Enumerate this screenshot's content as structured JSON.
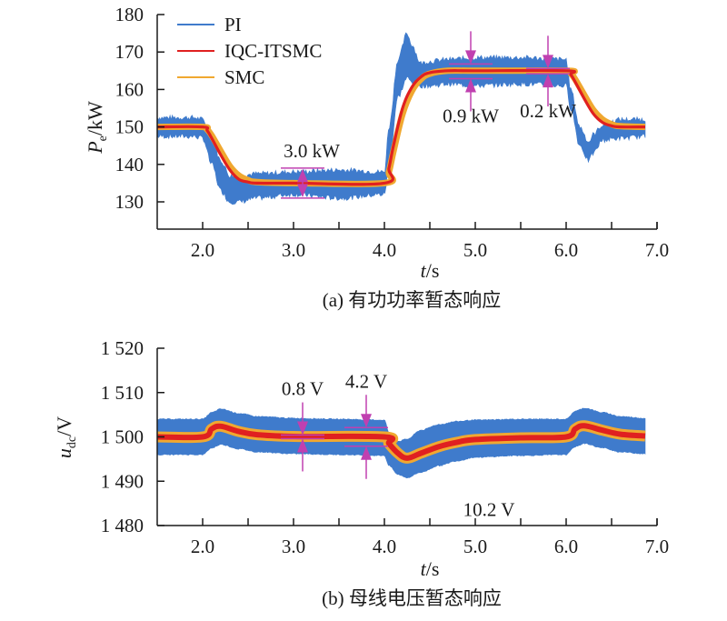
{
  "chart_data": [
    {
      "type": "line",
      "panel": "a",
      "caption": "(a) 有功功率暂态响应",
      "xlabel_italic": "t",
      "xlabel_unit": "/s",
      "ylabel_symbol": "P",
      "ylabel_subscript": "e",
      "ylabel_unit": "/kW",
      "xlim": [
        1.5,
        7.0
      ],
      "ylim": [
        125,
        180
      ],
      "xticks": [
        2.0,
        3.0,
        4.0,
        5.0,
        6.0,
        7.0
      ],
      "xtick_labels": [
        "2.0",
        "3.0",
        "4.0",
        "5.0",
        "6.0",
        "7.0"
      ],
      "xminor_ticks": [
        2.5,
        3.5,
        4.5,
        5.5,
        6.5
      ],
      "yticks": [
        130,
        140,
        150,
        160,
        170,
        180
      ],
      "ytick_labels": [
        "130",
        "140",
        "150",
        "160",
        "170",
        "180"
      ],
      "legend": {
        "placement": "top-left",
        "entries": [
          {
            "name": "PI",
            "color": "#3f7bcc"
          },
          {
            "name": "IQC-ITSMC",
            "color": "#e02020"
          },
          {
            "name": "SMC",
            "color": "#f0a830"
          }
        ]
      },
      "series": [
        {
          "name": "PI",
          "color": "#3f7bcc",
          "style": "band",
          "x": [
            1.5,
            1.9,
            2.0,
            2.1,
            2.2,
            2.3,
            2.4,
            2.6,
            3.0,
            3.5,
            4.0,
            4.05,
            4.15,
            4.25,
            4.3,
            4.4,
            4.5,
            4.7,
            5.0,
            5.5,
            6.0,
            6.05,
            6.15,
            6.25,
            6.3,
            6.4,
            6.6,
            6.87
          ],
          "upper": [
            152.5,
            152.5,
            152,
            147,
            141,
            137,
            137,
            137.5,
            138,
            138.5,
            138,
            150,
            168,
            175,
            172,
            167,
            167.5,
            168,
            168.5,
            168.5,
            168,
            160,
            150,
            146,
            148,
            150.5,
            152,
            152
          ],
          "lower": [
            147.5,
            147.5,
            147,
            140,
            133,
            130,
            130,
            131,
            132,
            131,
            132,
            140,
            158,
            163,
            162,
            161,
            161,
            161.5,
            161,
            161.5,
            161,
            155,
            145,
            141,
            143,
            146.5,
            147,
            147.5
          ]
        },
        {
          "name": "IQC-ITSMC",
          "color": "#e02020",
          "x": [
            1.5,
            2.0,
            2.05,
            2.1,
            2.2,
            2.3,
            2.4,
            2.5,
            2.6,
            3.0,
            4.0,
            4.05,
            4.1,
            4.2,
            4.3,
            4.4,
            4.5,
            4.7,
            5.0,
            6.0,
            6.05,
            6.1,
            6.2,
            6.3,
            6.4,
            6.5,
            6.6,
            6.87
          ],
          "y": [
            150,
            150,
            149,
            147,
            142.5,
            138.5,
            136,
            135.3,
            135,
            135,
            135,
            139,
            145,
            155,
            160.5,
            163.3,
            164.5,
            165,
            165,
            165,
            164,
            162,
            157.5,
            153.5,
            151.2,
            150.3,
            150,
            150
          ]
        },
        {
          "name": "SMC",
          "color": "#f0a830",
          "x": [
            1.5,
            2.0,
            2.05,
            2.1,
            2.2,
            2.3,
            2.4,
            2.5,
            2.6,
            3.0,
            4.0,
            4.05,
            4.1,
            4.2,
            4.3,
            4.4,
            4.5,
            4.7,
            5.0,
            6.0,
            6.05,
            6.1,
            6.2,
            6.3,
            6.4,
            6.5,
            6.6,
            6.87
          ],
          "y": [
            150,
            150,
            149.3,
            147.7,
            143.5,
            139.5,
            137,
            135.8,
            135.3,
            135,
            135,
            138,
            143.5,
            153.5,
            159.5,
            162.7,
            164.2,
            165,
            165,
            165,
            164.3,
            162.7,
            158.5,
            154.5,
            152,
            150.7,
            150.2,
            150
          ]
        }
      ],
      "annotations": [
        {
          "text": "3.0 kW",
          "x": 3.1,
          "upper": 139,
          "lower": 131,
          "type": "outward-arrows",
          "label_position": "above"
        },
        {
          "text": "0.9 kW",
          "x": 4.95,
          "upper": 166.8,
          "lower": 162.9,
          "type": "inward-arrows",
          "label_position": "below"
        },
        {
          "text": "0.2 kW",
          "x": 5.8,
          "upper": 165.6,
          "lower": 164.2,
          "type": "inward-arrows",
          "label_position": "below"
        }
      ]
    },
    {
      "type": "line",
      "panel": "b",
      "caption": "(b) 母线电压暂态响应",
      "xlabel_italic": "t",
      "xlabel_unit": "/s",
      "ylabel_symbol": "u",
      "ylabel_subscript": "dc",
      "ylabel_unit": "/V",
      "xlim": [
        1.5,
        7.0
      ],
      "ylim": [
        1480,
        1520
      ],
      "xticks": [
        2.0,
        3.0,
        4.0,
        5.0,
        6.0,
        7.0
      ],
      "xtick_labels": [
        "2.0",
        "3.0",
        "4.0",
        "5.0",
        "6.0",
        "7.0"
      ],
      "xminor_ticks": [
        2.5,
        3.5,
        4.5,
        5.5,
        6.5
      ],
      "yticks": [
        1480,
        1490,
        1500,
        1510,
        1520
      ],
      "ytick_labels": [
        "1 480",
        "1 490",
        "1 500",
        "1 510",
        "1 520"
      ],
      "series": [
        {
          "name": "PI",
          "color": "#3f7bcc",
          "style": "band",
          "x": [
            1.5,
            2.0,
            2.1,
            2.2,
            2.4,
            2.6,
            3.0,
            3.5,
            4.0,
            4.05,
            4.15,
            4.25,
            4.4,
            4.6,
            4.8,
            5.0,
            5.5,
            6.0,
            6.1,
            6.2,
            6.4,
            6.6,
            6.87
          ],
          "upper": [
            1504,
            1504,
            1505.5,
            1506.3,
            1505.3,
            1504.6,
            1504.2,
            1504,
            1503.8,
            1501,
            1499,
            1499.5,
            1501.5,
            1502.8,
            1503.5,
            1503.8,
            1504,
            1504,
            1505.8,
            1506.5,
            1505.5,
            1504.6,
            1504.2
          ],
          "lower": [
            1496,
            1496,
            1497.5,
            1498.3,
            1497.3,
            1496.6,
            1496.2,
            1496,
            1495.8,
            1493.5,
            1491.5,
            1490.8,
            1492,
            1493.5,
            1494.6,
            1495.4,
            1495.8,
            1496,
            1497.8,
            1498.5,
            1497.5,
            1496.6,
            1496.2
          ]
        },
        {
          "name": "SMC",
          "color": "#f0a830",
          "x": [
            1.5,
            2.0,
            2.1,
            2.2,
            2.4,
            2.6,
            3.0,
            4.0,
            4.05,
            4.15,
            4.25,
            4.4,
            4.6,
            4.8,
            5.0,
            5.5,
            6.0,
            6.1,
            6.2,
            6.4,
            6.6,
            6.87
          ],
          "y": [
            1500,
            1500,
            1501.8,
            1502.4,
            1501.2,
            1500.5,
            1500.1,
            1500,
            1498.5,
            1496.3,
            1495.2,
            1496.3,
            1497.8,
            1498.8,
            1499.4,
            1499.8,
            1500,
            1501.8,
            1502.5,
            1501.5,
            1500.6,
            1500.2
          ]
        },
        {
          "name": "IQC-ITSMC",
          "color": "#e02020",
          "x": [
            1.5,
            2.0,
            2.1,
            2.2,
            2.4,
            2.6,
            3.0,
            4.0,
            4.05,
            4.15,
            4.25,
            4.4,
            4.6,
            4.8,
            5.0,
            5.5,
            6.0,
            6.1,
            6.2,
            6.4,
            6.6,
            6.87
          ],
          "y": [
            1500,
            1500,
            1501.8,
            1502.4,
            1501.2,
            1500.5,
            1500.1,
            1500,
            1498.5,
            1496.3,
            1495.2,
            1496.3,
            1497.8,
            1498.8,
            1499.4,
            1499.8,
            1500,
            1501.8,
            1502.5,
            1501.5,
            1500.6,
            1500.2
          ]
        }
      ],
      "annotations": [
        {
          "text": "0.8 V",
          "x": 3.1,
          "upper": 1500.4,
          "lower": 1499.6,
          "type": "inward-arrows",
          "label_position": "above"
        },
        {
          "text": "4.2 V",
          "x": 3.8,
          "upper": 1502.1,
          "lower": 1497.9,
          "type": "inward-arrows",
          "label_position": "above"
        },
        {
          "text": "10.2 V",
          "x": 4.95,
          "type": "label",
          "y": 1490,
          "label_position": "below"
        }
      ]
    }
  ],
  "annotation_color": "#c040b0"
}
